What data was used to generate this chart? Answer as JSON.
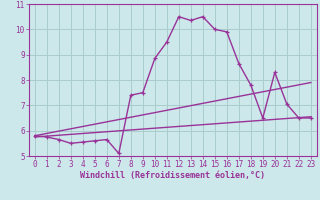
{
  "bg_color": "#cce8ea",
  "grid_color": "#aacccc",
  "line_color": "#993399",
  "xlim": [
    -0.5,
    23.5
  ],
  "ylim": [
    5,
    11
  ],
  "yticks": [
    5,
    6,
    7,
    8,
    9,
    10,
    11
  ],
  "xticks": [
    0,
    1,
    2,
    3,
    4,
    5,
    6,
    7,
    8,
    9,
    10,
    11,
    12,
    13,
    14,
    15,
    16,
    17,
    18,
    19,
    20,
    21,
    22,
    23
  ],
  "xlabel": "Windchill (Refroidissement éolien,°C)",
  "line1_x": [
    0,
    1,
    2,
    3,
    4,
    5,
    6,
    7,
    8,
    9,
    10,
    11,
    12,
    13,
    14,
    15,
    16,
    17,
    18,
    19,
    20,
    21,
    22,
    23
  ],
  "line1_y": [
    5.8,
    5.75,
    5.65,
    5.5,
    5.55,
    5.6,
    5.65,
    5.1,
    7.4,
    7.5,
    8.85,
    9.5,
    10.5,
    10.35,
    10.5,
    10.0,
    9.9,
    8.65,
    7.8,
    6.5,
    8.3,
    7.05,
    6.5,
    6.5
  ],
  "line2_x": [
    0,
    23
  ],
  "line2_y": [
    5.8,
    7.9
  ],
  "line3_x": [
    0,
    23
  ],
  "line3_y": [
    5.75,
    6.55
  ],
  "marker_size": 3.5,
  "line_width": 1.0,
  "tick_fontsize": 5.5,
  "xlabel_fontsize": 6.0
}
